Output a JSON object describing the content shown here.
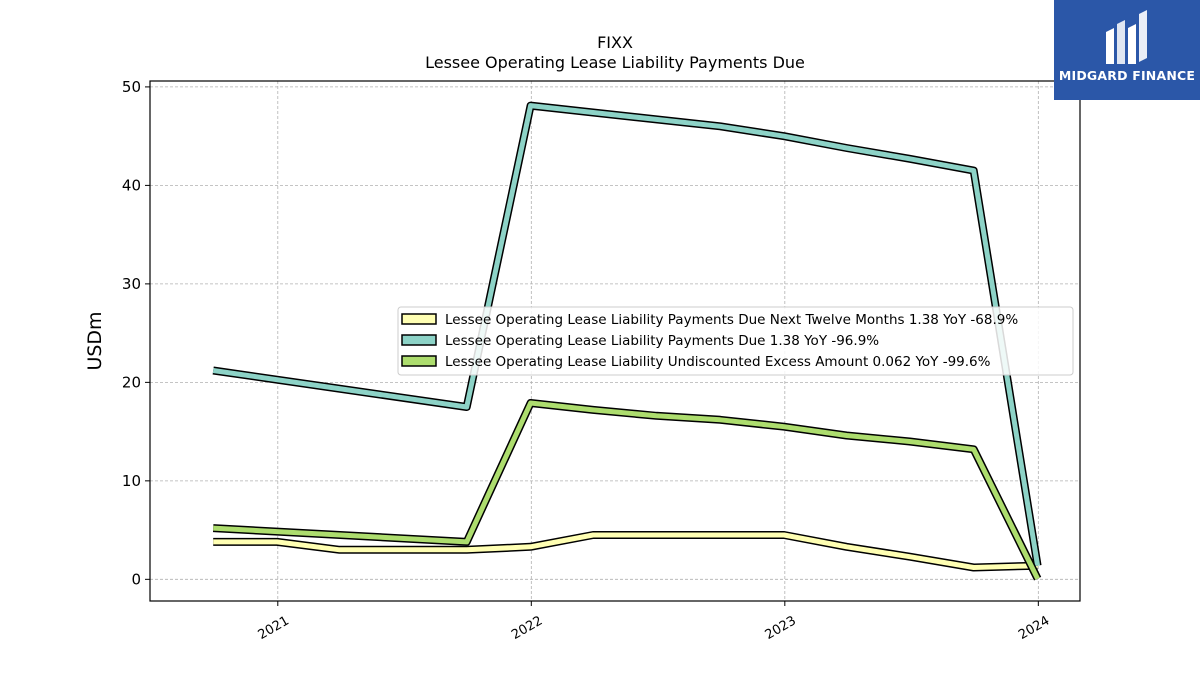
{
  "chart_data": {
    "type": "line",
    "title": "FIXX",
    "subtitle": "Lessee Operating Lease Liability Payments Due",
    "ylabel": "USDm",
    "xlabel": "",
    "ylim": [
      -2.2,
      50.6
    ],
    "xlim": [
      "2020-07-01",
      "2024-03-01"
    ],
    "yticks": [
      0,
      10,
      20,
      30,
      40,
      50
    ],
    "xticks": [
      "2021",
      "2022",
      "2023",
      "2024"
    ],
    "grid": true,
    "legend_position": "center-right",
    "series": [
      {
        "name": "Lessee Operating Lease Liability Payments Due Next Twelve Months  1.38 YoY -68.9%",
        "color": "#ffffb3",
        "points": [
          {
            "x": "2020-09-30",
            "y": 3.8
          },
          {
            "x": "2020-12-31",
            "y": 3.8
          },
          {
            "x": "2021-03-31",
            "y": 3.0
          },
          {
            "x": "2021-09-30",
            "y": 3.0
          },
          {
            "x": "2021-12-31",
            "y": 3.3
          },
          {
            "x": "2022-03-31",
            "y": 4.5
          },
          {
            "x": "2022-06-30",
            "y": 4.5
          },
          {
            "x": "2022-09-30",
            "y": 4.5
          },
          {
            "x": "2022-12-31",
            "y": 4.5
          },
          {
            "x": "2023-03-31",
            "y": 3.3
          },
          {
            "x": "2023-06-30",
            "y": 2.3
          },
          {
            "x": "2023-09-30",
            "y": 1.2
          },
          {
            "x": "2023-12-31",
            "y": 1.38
          }
        ]
      },
      {
        "name": "Lessee Operating Lease Liability Payments Due  1.38 YoY -96.9%",
        "color": "#8dd3c7",
        "points": [
          {
            "x": "2020-09-30",
            "y": 21.2
          },
          {
            "x": "2021-09-30",
            "y": 17.5
          },
          {
            "x": "2021-12-31",
            "y": 48.1
          },
          {
            "x": "2022-03-31",
            "y": 47.4
          },
          {
            "x": "2022-06-30",
            "y": 46.7
          },
          {
            "x": "2022-09-30",
            "y": 46.0
          },
          {
            "x": "2022-12-31",
            "y": 45.0
          },
          {
            "x": "2023-03-31",
            "y": 43.8
          },
          {
            "x": "2023-06-30",
            "y": 42.7
          },
          {
            "x": "2023-09-30",
            "y": 41.5
          },
          {
            "x": "2023-12-31",
            "y": 1.38
          }
        ]
      },
      {
        "name": "Lessee Operating Lease Liability Undiscounted Excess Amount  0.062 YoY -99.6%",
        "color": "#addd6e",
        "points": [
          {
            "x": "2020-09-30",
            "y": 5.2
          },
          {
            "x": "2021-09-30",
            "y": 3.8
          },
          {
            "x": "2021-12-31",
            "y": 17.9
          },
          {
            "x": "2022-03-31",
            "y": 17.2
          },
          {
            "x": "2022-06-30",
            "y": 16.6
          },
          {
            "x": "2022-09-30",
            "y": 16.2
          },
          {
            "x": "2022-12-31",
            "y": 15.5
          },
          {
            "x": "2023-03-31",
            "y": 14.6
          },
          {
            "x": "2023-06-30",
            "y": 14.0
          },
          {
            "x": "2023-09-30",
            "y": 13.2
          },
          {
            "x": "2023-12-31",
            "y": 0.062
          }
        ]
      }
    ]
  },
  "logo": {
    "text": "MIDGARD FINANCE",
    "background": "#2b57a8"
  }
}
